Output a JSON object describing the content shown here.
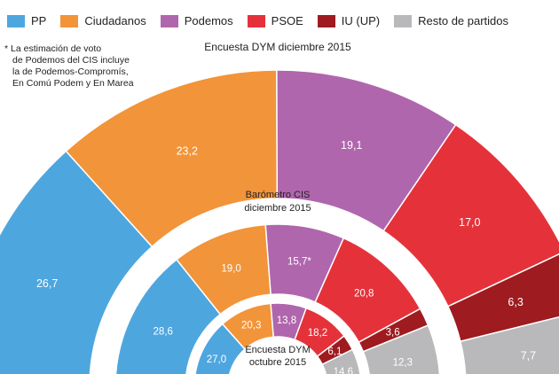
{
  "legend": [
    {
      "label": "PP",
      "color": "#4EA6DF"
    },
    {
      "label": "Ciudadanos",
      "color": "#F29439"
    },
    {
      "label": "Podemos",
      "color": "#B066AD"
    },
    {
      "label": "PSOE",
      "color": "#E5323A"
    },
    {
      "label": "IU (UP)",
      "color": "#9E1B20"
    },
    {
      "label": "Resto de partidos",
      "color": "#B9B9BB"
    }
  ],
  "footnote": [
    "* La estimación de voto",
    "de Podemos del CIS incluye",
    "la de Podemos-Compromís,",
    "En Comú Podem y En Marea"
  ],
  "chart_data": [
    {
      "type": "pie",
      "title": "Encuesta DYM diciembre 2015",
      "categories": [
        "PP",
        "Ciudadanos",
        "Podemos",
        "PSOE",
        "IU (UP)",
        "Resto de partidos"
      ],
      "values": [
        26.7,
        23.2,
        19.1,
        17.0,
        6.3,
        7.7
      ],
      "labels": [
        "26,7",
        "23,2",
        "19,1",
        "17,0",
        "6,3",
        "7,7"
      ]
    },
    {
      "type": "pie",
      "title": [
        "Barómetro CIS",
        "diciembre 2015"
      ],
      "categories": [
        "PP",
        "Ciudadanos",
        "Podemos",
        "PSOE",
        "IU (UP)",
        "Resto de partidos"
      ],
      "values": [
        28.6,
        19.0,
        15.7,
        20.8,
        3.6,
        12.3
      ],
      "labels": [
        "28,6",
        "19,0",
        "15,7*",
        "20,8",
        "3,6",
        "12,3"
      ]
    },
    {
      "type": "pie",
      "title": [
        "Encuesta DYM",
        "octubre 2015"
      ],
      "categories": [
        "PP",
        "Ciudadanos",
        "Podemos",
        "PSOE",
        "IU (UP)",
        "Resto de partidos"
      ],
      "values": [
        27.0,
        20.3,
        13.8,
        18.2,
        6.1,
        14.6
      ],
      "labels": [
        "27,0",
        "20,3",
        "13,8",
        "18,2",
        "6,1",
        "14,6"
      ]
    }
  ]
}
